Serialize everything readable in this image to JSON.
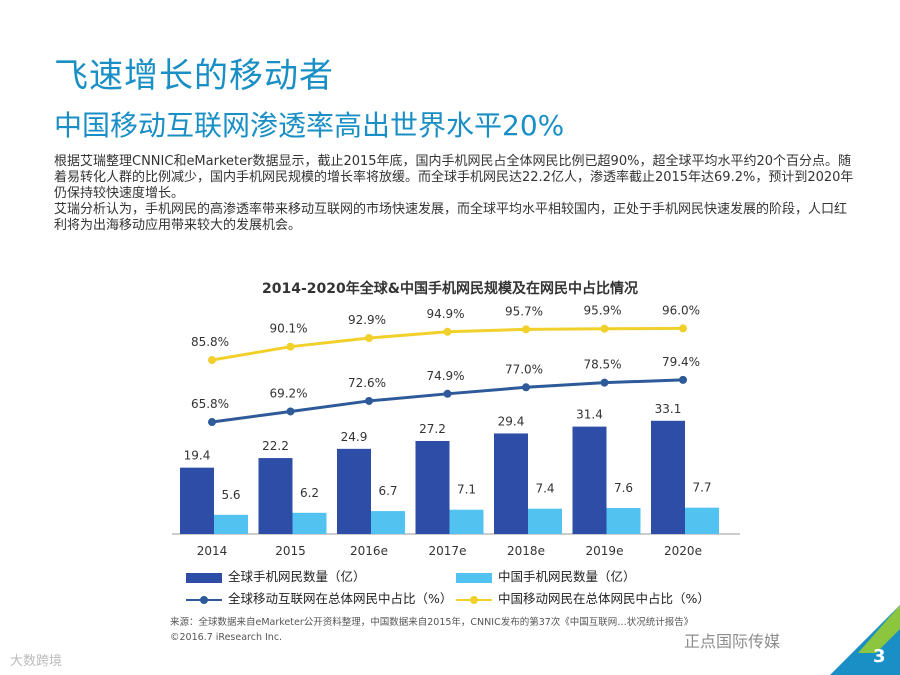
{
  "title": "飞速增长的移动者",
  "subtitle": "中国移动互联网渗透率高出世界水平20%",
  "body": [
    "根据艾瑞整理CNNIC和eMarketer数据显示，截止2015年底，国内手机网民占全体网民比例已超90%，超全球平均水平约20个百分点。随着易转化人群的比例减少，国内手机网民规模的增长率将放缓。而全球手机网民达22.2亿人，渗透率截止2015年达69.2%，预计到2020年仍保持较快速度增长。",
    "艾瑞分析认为，手机网民的高渗透率带来移动互联网的市场快速发展，而全球平均水平相较国内，正处于手机网民快速发展的阶段，人口红利将为出海移动应用带来较大的发展机会。"
  ],
  "source": "来源：全球数据来自eMarketer公开资料整理，中国数据来自2015年，CNNIC发布的第37次《中国互联网…状况统计报告》",
  "copyright": "©2016.7 iResearch Inc.",
  "watermark_left": "大数跨境",
  "watermark_right": "正点国际传媒",
  "page_number": "3",
  "colors": {
    "accent": "#1a8fc6",
    "global_bar": "#2e4da7",
    "china_bar": "#52c3f1",
    "global_line": "#2e5a99",
    "china_line": "#f2d02c",
    "corner_green": "#8cc63f",
    "corner_blue": "#1a8fc6"
  },
  "chart_data": {
    "type": "bar",
    "title": "2014-2020年全球&中国手机网民规模及在网民中占比情况",
    "categories": [
      "2014",
      "2015",
      "2016e",
      "2017e",
      "2018e",
      "2019e",
      "2020e"
    ],
    "series": [
      {
        "name": "全球手机网民数量（亿）",
        "kind": "bar",
        "color": "#2e4da7",
        "values": [
          19.4,
          22.2,
          24.9,
          27.2,
          29.4,
          31.4,
          33.1
        ],
        "labels": [
          "19.4",
          "22.2",
          "24.9",
          "27.2",
          "29.4",
          "31.4",
          "33.1"
        ]
      },
      {
        "name": "中国手机网民数量（亿）",
        "kind": "bar",
        "color": "#52c3f1",
        "values": [
          5.6,
          6.2,
          6.7,
          7.1,
          7.4,
          7.6,
          7.7
        ],
        "labels": [
          "5.6",
          "6.2",
          "6.7",
          "7.1",
          "7.4",
          "7.6",
          "7.7"
        ]
      },
      {
        "name": "全球移动互联网在总体网民中占比（%）",
        "kind": "line",
        "color": "#2e5a99",
        "values": [
          65.8,
          69.2,
          72.6,
          74.9,
          77.0,
          78.5,
          79.4
        ],
        "labels": [
          "65.8%",
          "69.2%",
          "72.6%",
          "74.9%",
          "77.0%",
          "78.5%",
          "79.4%"
        ]
      },
      {
        "name": "中国移动网民在总体网民中占比（%）",
        "kind": "line",
        "color": "#f2d02c",
        "values": [
          85.8,
          90.1,
          92.9,
          94.9,
          95.7,
          95.9,
          96.0
        ],
        "labels": [
          "85.8%",
          "90.1%",
          "92.9%",
          "94.9%",
          "95.7%",
          "95.9%",
          "96.0%"
        ]
      }
    ],
    "legend_position": "bottom",
    "grid": false
  }
}
